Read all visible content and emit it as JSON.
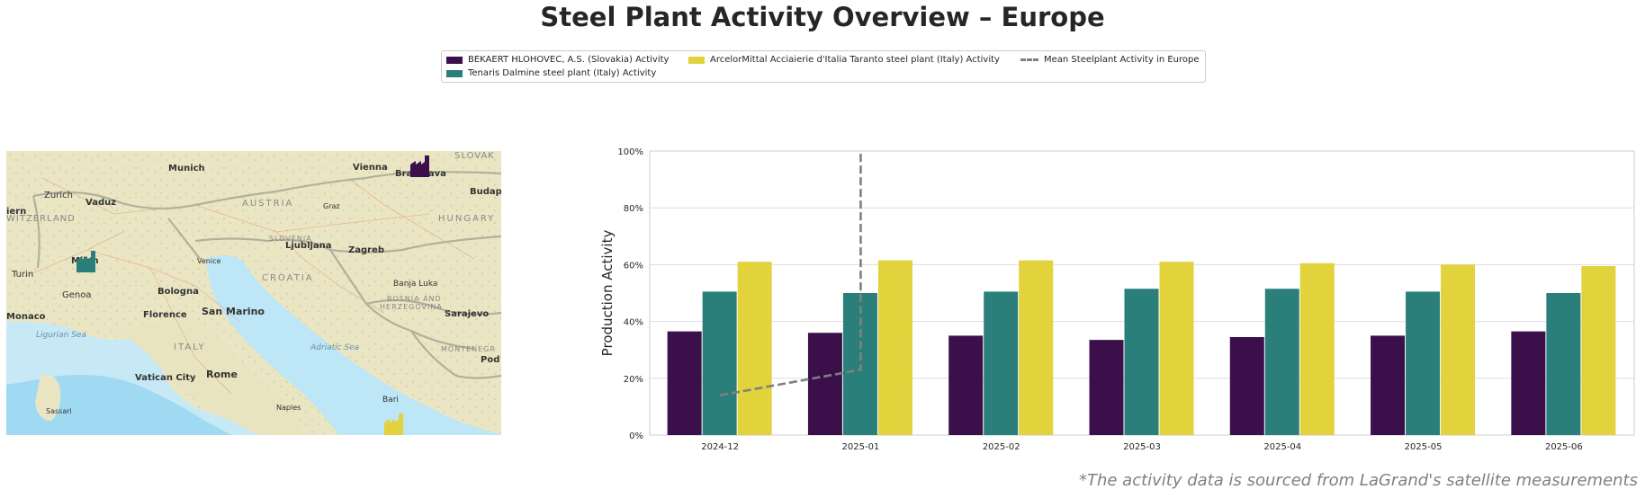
{
  "title": "Steel Plant Activity Overview – Europe",
  "footnote": "*The activity data is sourced from LaGrand's satellite measurements",
  "legend": [
    {
      "label": "BEKAERT HLOHOVEC, A.S. (Slovakia) Activity",
      "color": "#3b0f4a",
      "kind": "box"
    },
    {
      "label": "Tenaris Dalmine steel plant (Italy) Activity",
      "color": "#2a7f7a",
      "kind": "box"
    },
    {
      "label": "ArcelorMittal Acciaierie d'Italia Taranto steel plant (Italy) Activity",
      "color": "#e2d23c",
      "kind": "box"
    },
    {
      "label": "Mean Steelplant Activity in Europe",
      "color": "#808080",
      "kind": "dash"
    }
  ],
  "map": {
    "labels": [
      {
        "text": "Munich",
        "kind": "city"
      },
      {
        "text": "Vienna",
        "kind": "city"
      },
      {
        "text": "Bratislava",
        "kind": "city"
      },
      {
        "text": "SLOVAK",
        "kind": "country"
      },
      {
        "text": "Zurich",
        "kind": "city"
      },
      {
        "text": "Vaduz",
        "kind": "city"
      },
      {
        "text": "AUSTRIA",
        "kind": "country"
      },
      {
        "text": "Graz",
        "kind": "small"
      },
      {
        "text": "Budap",
        "kind": "city"
      },
      {
        "text": "WITZERLAND",
        "kind": "country"
      },
      {
        "text": "HUNGARY",
        "kind": "country"
      },
      {
        "text": "iern",
        "kind": "city"
      },
      {
        "text": "SLOVENIA",
        "kind": "country"
      },
      {
        "text": "Ljubljana",
        "kind": "city"
      },
      {
        "text": "Zagreb",
        "kind": "city"
      },
      {
        "text": "Milan",
        "kind": "city"
      },
      {
        "text": "Venice",
        "kind": "small"
      },
      {
        "text": "Turin",
        "kind": "small"
      },
      {
        "text": "CROATIA",
        "kind": "country"
      },
      {
        "text": "Banja Luka",
        "kind": "small"
      },
      {
        "text": "Bologna",
        "kind": "city"
      },
      {
        "text": "Genoa",
        "kind": "small"
      },
      {
        "text": "BOSNIA AND",
        "kind": "country"
      },
      {
        "text": "HERZEGOVINA",
        "kind": "country"
      },
      {
        "text": "Monaco",
        "kind": "city"
      },
      {
        "text": "Florence",
        "kind": "city"
      },
      {
        "text": "San Marino",
        "kind": "city"
      },
      {
        "text": "Sarajevo",
        "kind": "city"
      },
      {
        "text": "Ligurian Sea",
        "kind": "sea"
      },
      {
        "text": "ITALY",
        "kind": "country"
      },
      {
        "text": "Adriatic Sea",
        "kind": "sea"
      },
      {
        "text": "MONTENEGR",
        "kind": "country"
      },
      {
        "text": "Pod",
        "kind": "city"
      },
      {
        "text": "Vatican City",
        "kind": "city"
      },
      {
        "text": "Rome",
        "kind": "city"
      },
      {
        "text": "Naples",
        "kind": "small"
      },
      {
        "text": "Bari",
        "kind": "small"
      },
      {
        "text": "Sassari",
        "kind": "small"
      }
    ],
    "markers": [
      {
        "plant": "BEKAERT HLOHOVEC",
        "color": "#3b0f4a",
        "icon": "factory-icon"
      },
      {
        "plant": "Tenaris Dalmine",
        "color": "#2a7f7a",
        "icon": "factory-icon"
      },
      {
        "plant": "ArcelorMittal Taranto",
        "color": "#e2d23c",
        "icon": "factory-icon"
      }
    ]
  },
  "chart_data": {
    "type": "bar",
    "ylabel": "Production Activity",
    "xlabel": "",
    "ylim": [
      0,
      100
    ],
    "yticks": [
      "0%",
      "20%",
      "40%",
      "60%",
      "80%",
      "100%"
    ],
    "grid": true,
    "categories": [
      "2024-12",
      "2025-01",
      "2025-02",
      "2025-03",
      "2025-04",
      "2025-05",
      "2025-06"
    ],
    "series": [
      {
        "name": "BEKAERT HLOHOVEC, A.S. (Slovakia) Activity",
        "color": "#3b0f4a",
        "values": [
          36.5,
          36,
          35,
          33.5,
          34.5,
          35,
          36.5
        ]
      },
      {
        "name": "Tenaris Dalmine steel plant (Italy) Activity",
        "color": "#2a7f7a",
        "values": [
          50.5,
          50,
          50.5,
          51.5,
          51.5,
          50.5,
          50
        ]
      },
      {
        "name": "ArcelorMittal Acciaierie d'Italia Taranto steel plant (Italy) Activity",
        "color": "#e2d23c",
        "values": [
          61,
          61.5,
          61.5,
          61,
          60.5,
          60,
          59.5
        ]
      }
    ],
    "mean_line": {
      "name": "Mean Steelplant Activity in Europe",
      "color": "#808080",
      "points": [
        [
          "2024-12",
          14
        ],
        [
          "2025-01",
          23
        ],
        [
          "2025-01",
          100
        ]
      ]
    }
  }
}
